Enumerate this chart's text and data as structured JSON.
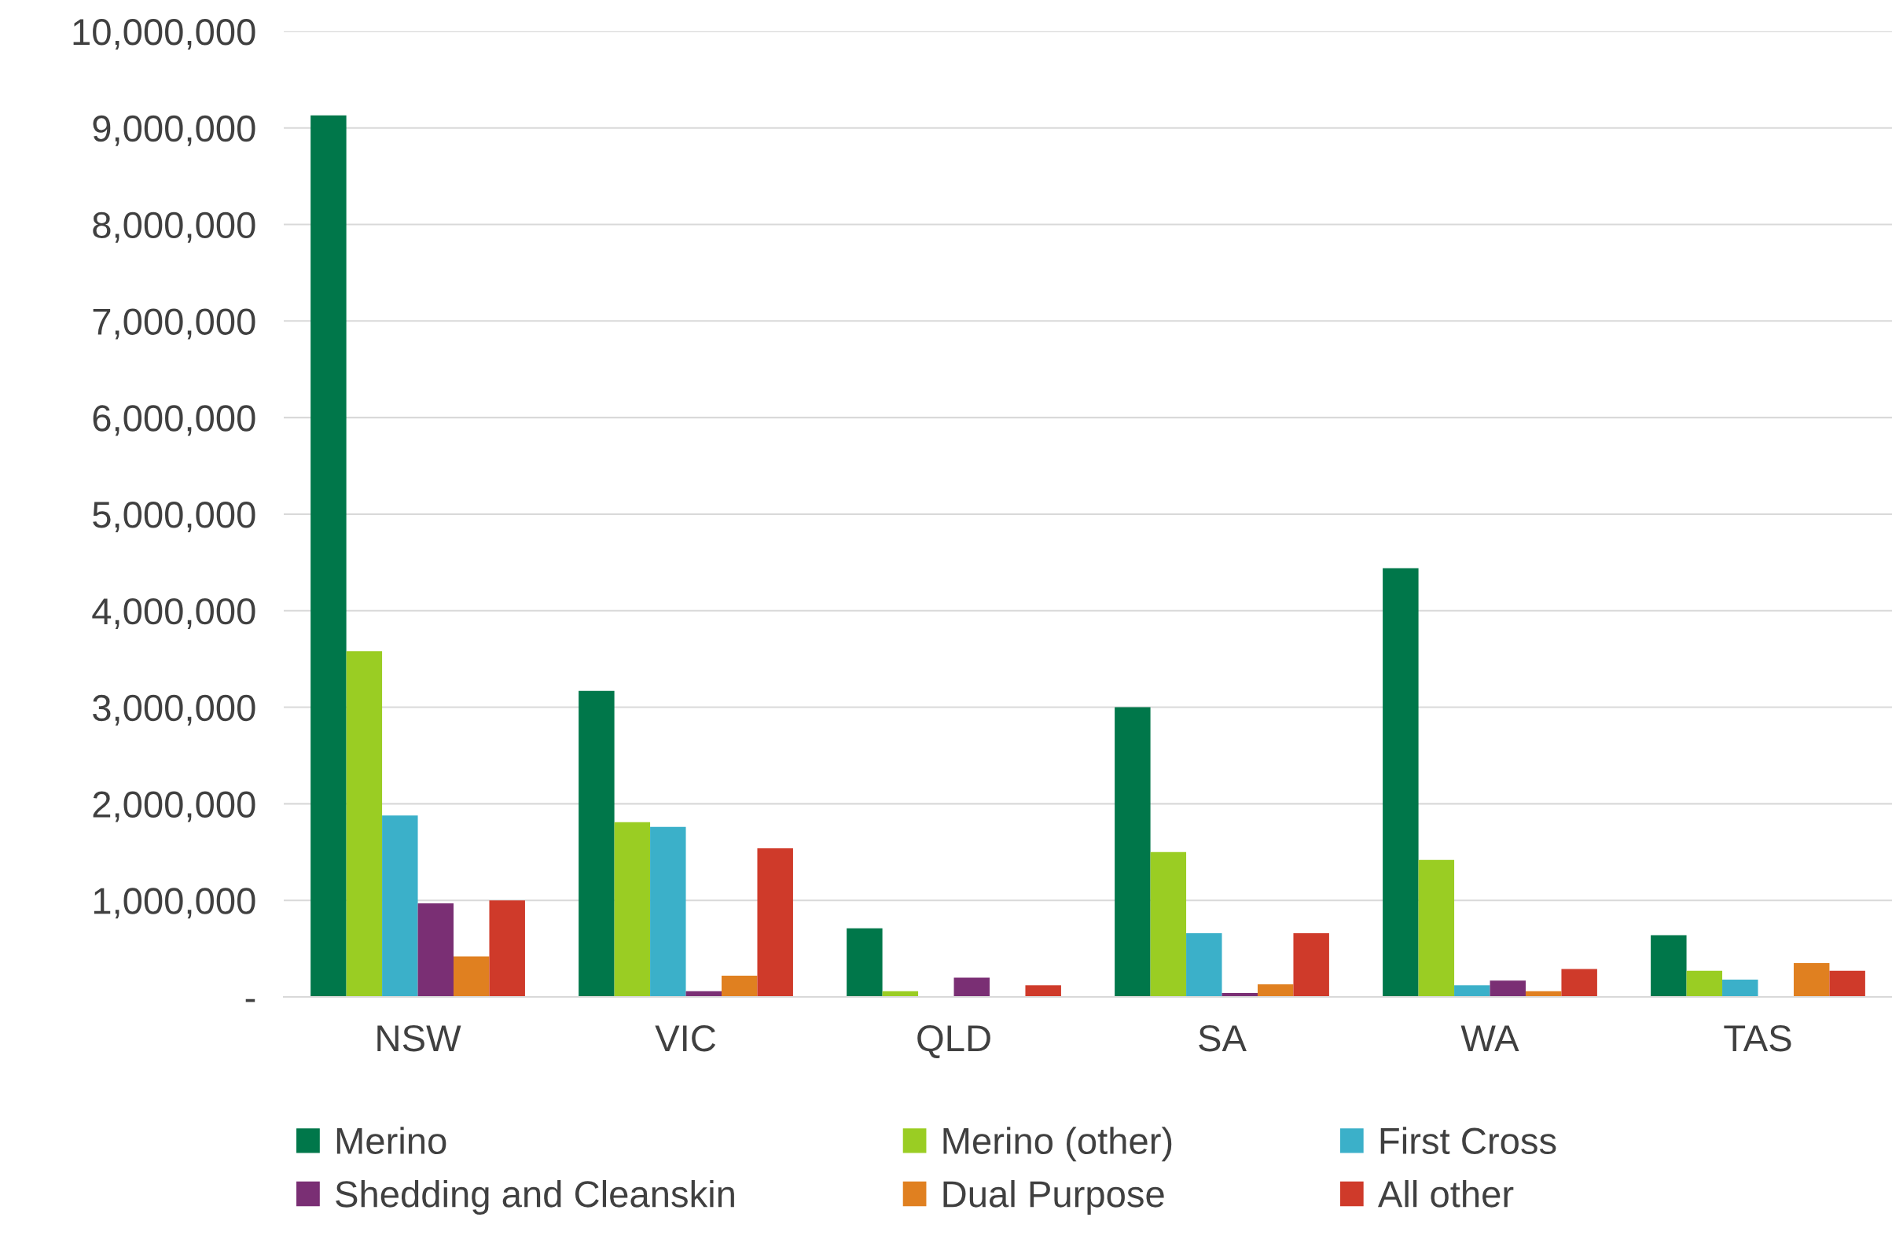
{
  "chart_data": {
    "type": "bar",
    "categories": [
      "NSW",
      "VIC",
      "QLD",
      "SA",
      "WA",
      "TAS"
    ],
    "series": [
      {
        "name": "Merino",
        "color": "#00774a",
        "values": [
          9130000,
          3170000,
          710000,
          3000000,
          4440000,
          640000
        ]
      },
      {
        "name": "Merino (other)",
        "color": "#9acd23",
        "values": [
          3580000,
          1810000,
          60000,
          1500000,
          1420000,
          270000
        ]
      },
      {
        "name": "First Cross",
        "color": "#3bb0c9",
        "values": [
          1880000,
          1760000,
          0,
          660000,
          120000,
          180000
        ]
      },
      {
        "name": "Shedding and Cleanskin",
        "color": "#7a2f74",
        "values": [
          970000,
          60000,
          200000,
          40000,
          170000,
          0
        ]
      },
      {
        "name": "Dual Purpose",
        "color": "#e08020",
        "values": [
          420000,
          220000,
          0,
          130000,
          60000,
          350000
        ]
      },
      {
        "name": "All other",
        "color": "#cf3a2a",
        "values": [
          1000000,
          1540000,
          120000,
          660000,
          290000,
          270000
        ]
      }
    ],
    "ylim": [
      0,
      10000000
    ],
    "yticks": [
      {
        "value": 0,
        "label": "-"
      },
      {
        "value": 1000000,
        "label": "1,000,000"
      },
      {
        "value": 2000000,
        "label": "2,000,000"
      },
      {
        "value": 3000000,
        "label": "3,000,000"
      },
      {
        "value": 4000000,
        "label": "4,000,000"
      },
      {
        "value": 5000000,
        "label": "5,000,000"
      },
      {
        "value": 6000000,
        "label": "6,000,000"
      },
      {
        "value": 7000000,
        "label": "7,000,000"
      },
      {
        "value": 8000000,
        "label": "8,000,000"
      },
      {
        "value": 9000000,
        "label": "9,000,000"
      },
      {
        "value": 10000000,
        "label": "10,000,000"
      }
    ],
    "grid": "y",
    "legend": "bottom"
  }
}
